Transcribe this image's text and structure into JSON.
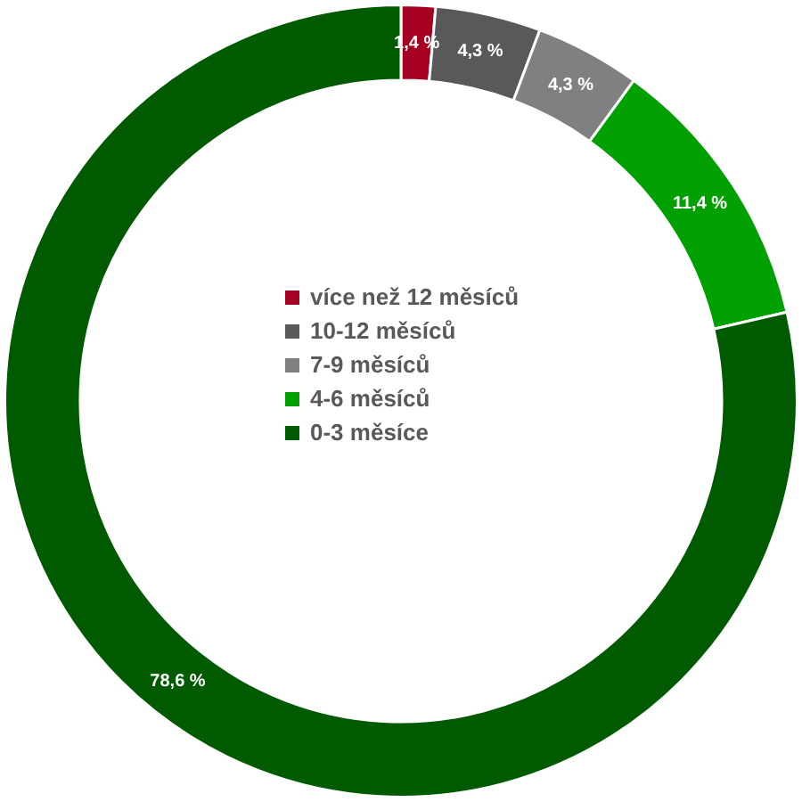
{
  "chart_data": {
    "type": "donut",
    "categories": [
      "více než 12 měsíců",
      "10-12 měsíců",
      "7-9 měsíců",
      "4-6 měsíců",
      "0-3 měsíce"
    ],
    "values": [
      1.4,
      4.3,
      4.3,
      11.4,
      78.6
    ],
    "colors": [
      "#a50021",
      "#595959",
      "#808080",
      "#00a000",
      "#005a00"
    ],
    "value_labels": [
      "1,4 %",
      "4,3 %",
      "4,3 %",
      "11,4 %",
      "78,6 %"
    ],
    "legend": "center"
  }
}
